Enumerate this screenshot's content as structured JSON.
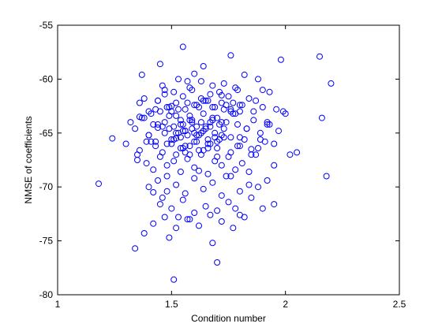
{
  "chart_data": {
    "type": "scatter",
    "title": "",
    "xlabel": "Condition number",
    "ylabel": "NMSE of coefficients",
    "xlim": [
      1,
      2.5
    ],
    "ylim": [
      -80,
      -55
    ],
    "xticks": [
      1,
      1.5,
      2,
      2.5
    ],
    "xtick_labels": [
      "1",
      "1.5",
      "2",
      "2.5"
    ],
    "yticks": [
      -80,
      -75,
      -70,
      -65,
      -60,
      -55
    ],
    "ytick_labels": [
      "-80",
      "-75",
      "-70",
      "-65",
      "-60",
      "-55"
    ],
    "grid": false,
    "legend": "none",
    "marker": "open-circle",
    "marker_color": "#0000ff",
    "series": [
      {
        "x": [
          1.18,
          1.24,
          1.3,
          1.32,
          1.34,
          1.35,
          1.36,
          1.37,
          1.38,
          1.4,
          1.42,
          1.44,
          1.45,
          1.46,
          1.47,
          1.48,
          1.49,
          1.5,
          1.51,
          1.52,
          1.53,
          1.54,
          1.55,
          1.56,
          1.57,
          1.58,
          1.59,
          1.6,
          1.62,
          1.64,
          1.66,
          1.68,
          1.7,
          1.72,
          1.74,
          1.76,
          1.78,
          1.8,
          1.82,
          1.85,
          1.88,
          1.9,
          1.92,
          1.95,
          1.98,
          2.0,
          2.02,
          2.05,
          2.15,
          2.16,
          2.18,
          2.2,
          1.36,
          1.4,
          1.43,
          1.46,
          1.48,
          1.5,
          1.52,
          1.54,
          1.56,
          1.58,
          1.6,
          1.62,
          1.64,
          1.66,
          1.68,
          1.7,
          1.72,
          1.74,
          1.76,
          1.78,
          1.8,
          1.83,
          1.86,
          1.89,
          1.92,
          1.95,
          1.38,
          1.41,
          1.44,
          1.47,
          1.49,
          1.51,
          1.53,
          1.55,
          1.57,
          1.59,
          1.61,
          1.63,
          1.65,
          1.67,
          1.69,
          1.71,
          1.73,
          1.75,
          1.77,
          1.79,
          1.81,
          1.84,
          1.87,
          1.9,
          1.93,
          1.96,
          1.99,
          1.35,
          1.39,
          1.42,
          1.45,
          1.48,
          1.51,
          1.54,
          1.57,
          1.6,
          1.63,
          1.66,
          1.69,
          1.72,
          1.75,
          1.78,
          1.81,
          1.84,
          1.87,
          1.4,
          1.44,
          1.48,
          1.52,
          1.56,
          1.6,
          1.64,
          1.68,
          1.72,
          1.76,
          1.8,
          1.84,
          1.88,
          1.92,
          1.45,
          1.5,
          1.55,
          1.6,
          1.65,
          1.7,
          1.75,
          1.8,
          1.85,
          1.9,
          1.95,
          1.42,
          1.47,
          1.52,
          1.57,
          1.62,
          1.67,
          1.72,
          1.77,
          1.82,
          1.46,
          1.53,
          1.58,
          1.63,
          1.68,
          1.73,
          1.78,
          1.34,
          1.37,
          1.41,
          1.44,
          1.49,
          1.53,
          1.56,
          1.59,
          1.62,
          1.65,
          1.68,
          1.71,
          1.74,
          1.77,
          1.8,
          1.83,
          1.86,
          1.89,
          1.93,
          1.97,
          1.36,
          1.39,
          1.43,
          1.46,
          1.5,
          1.55,
          1.58,
          1.61,
          1.64,
          1.67,
          1.7,
          1.73,
          1.76,
          1.79,
          1.82,
          1.85,
          1.88,
          1.91,
          1.38,
          1.42,
          1.45,
          1.49,
          1.52,
          1.55,
          1.58,
          1.61,
          1.64,
          1.67,
          1.7,
          1.73,
          1.76,
          1.79,
          1.4,
          1.43,
          1.47,
          1.51,
          1.54,
          1.57,
          1.6,
          1.63,
          1.66,
          1.69,
          1.72,
          1.44,
          1.48,
          1.52,
          1.56,
          1.6,
          1.64,
          1.68,
          1.72,
          1.76,
          1.8,
          1.47,
          1.51,
          1.55,
          1.59,
          1.63,
          1.67,
          1.71,
          1.5,
          1.54,
          1.58,
          1.62,
          1.66,
          1.7,
          1.52,
          1.56,
          1.61,
          1.65,
          1.69
        ],
        "y": [
          -69.7,
          -65.5,
          -66.0,
          -64.0,
          -75.7,
          -67.5,
          -62.2,
          -59.6,
          -74.3,
          -63.0,
          -70.5,
          -64.5,
          -58.6,
          -71.0,
          -61.0,
          -69.0,
          -74.7,
          -62.5,
          -78.6,
          -67.0,
          -72.8,
          -63.8,
          -57.0,
          -66.2,
          -60.2,
          -73.0,
          -64.0,
          -59.5,
          -68.5,
          -58.8,
          -62.0,
          -75.2,
          -77.0,
          -61.5,
          -69.0,
          -57.8,
          -72.0,
          -63.0,
          -59.6,
          -66.5,
          -60.0,
          -61.0,
          -64.0,
          -68.0,
          -58.2,
          -63.2,
          -67.0,
          -66.8,
          -57.9,
          -63.6,
          -69.0,
          -60.4,
          -63.5,
          -65.2,
          -62.8,
          -64.4,
          -66.0,
          -63.0,
          -65.5,
          -64.2,
          -66.8,
          -63.4,
          -65.0,
          -62.6,
          -64.8,
          -66.4,
          -63.8,
          -65.8,
          -64.0,
          -62.4,
          -65.4,
          -63.2,
          -66.2,
          -64.6,
          -63.0,
          -65.6,
          -64.2,
          -66.0,
          -61.8,
          -63.2,
          -62.0,
          -61.4,
          -62.6,
          -61.2,
          -62.8,
          -61.6,
          -62.2,
          -61.0,
          -62.4,
          -61.8,
          -62.0,
          -61.4,
          -62.6,
          -61.2,
          -62.8,
          -61.6,
          -62.2,
          -61.0,
          -62.4,
          -61.8,
          -62.0,
          -62.6,
          -61.2,
          -62.8,
          -63.0,
          -67.0,
          -67.8,
          -68.4,
          -67.2,
          -68.0,
          -67.6,
          -68.6,
          -67.4,
          -68.2,
          -67.0,
          -68.8,
          -67.6,
          -68.0,
          -67.2,
          -68.4,
          -67.8,
          -68.6,
          -67.0,
          -70.0,
          -69.4,
          -70.4,
          -69.8,
          -70.6,
          -69.2,
          -70.2,
          -69.6,
          -70.8,
          -69.0,
          -70.4,
          -69.8,
          -70.0,
          -69.4,
          -71.6,
          -72.0,
          -71.2,
          -72.4,
          -71.8,
          -72.2,
          -71.4,
          -72.6,
          -71.0,
          -72.0,
          -71.6,
          -73.4,
          -72.8,
          -73.8,
          -73.0,
          -73.6,
          -72.6,
          -73.2,
          -73.8,
          -72.8,
          -60.6,
          -60.0,
          -60.8,
          -60.2,
          -60.6,
          -60.4,
          -60.8,
          -64.6,
          -63.6,
          -65.8,
          -64.2,
          -63.4,
          -65.0,
          -64.8,
          -63.8,
          -65.2,
          -64.4,
          -63.6,
          -65.6,
          -64.0,
          -63.2,
          -65.4,
          -64.6,
          -63.8,
          -65.0,
          -64.2,
          -64.8,
          -66.6,
          -65.8,
          -66.2,
          -66.8,
          -65.6,
          -66.4,
          -67.0,
          -65.8,
          -66.6,
          -66.0,
          -67.2,
          -65.4,
          -66.8,
          -66.2,
          -65.6,
          -67.0,
          -66.4,
          -65.8,
          -63.6,
          -64.2,
          -63.0,
          -64.6,
          -63.4,
          -64.8,
          -63.8,
          -64.4,
          -63.2,
          -64.0,
          -63.6,
          -64.6,
          -63.0,
          -64.2,
          -65.2,
          -65.8,
          -65.0,
          -65.6,
          -65.4,
          -65.2,
          -65.8,
          -65.0,
          -65.6,
          -65.4,
          -65.2,
          -62.0,
          -62.6,
          -62.2,
          -62.8,
          -62.4,
          -62.0,
          -62.6,
          -62.2,
          -62.8,
          -62.4,
          -64.0,
          -64.4,
          -64.2,
          -64.6,
          -64.0,
          -64.4,
          -64.2,
          -66.0,
          -66.4,
          -66.2,
          -66.6,
          -66.0,
          -66.4,
          -65.0,
          -64.8,
          -65.2,
          -64.6,
          -65.0
        ]
      }
    ]
  }
}
